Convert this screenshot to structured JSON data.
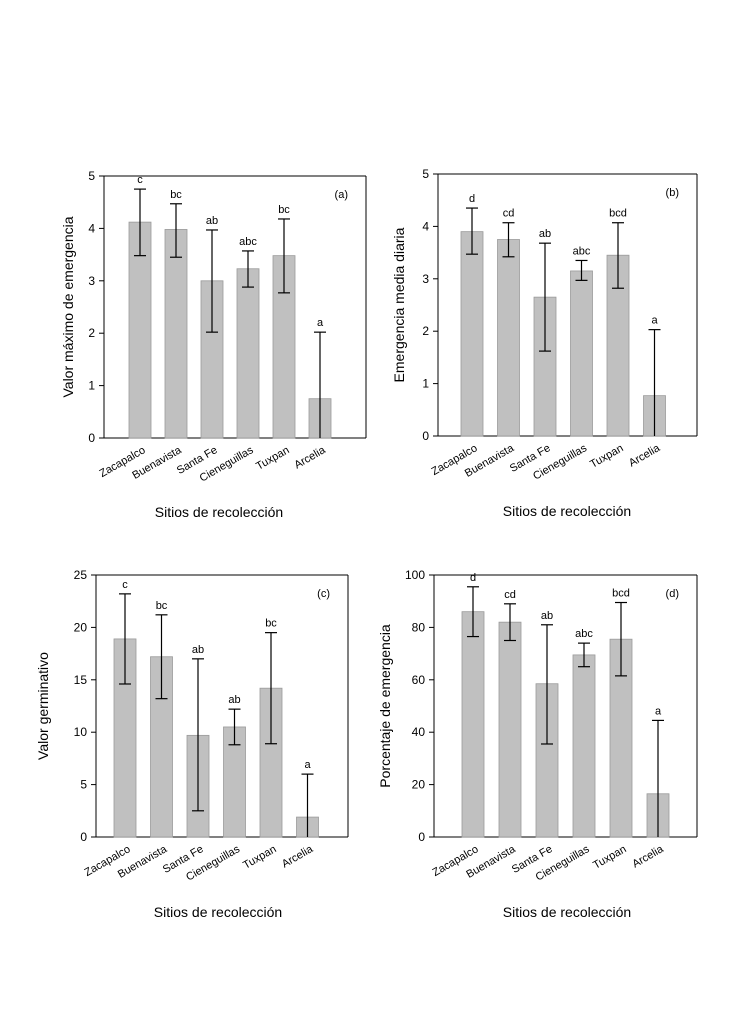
{
  "chart_data": [
    {
      "type": "bar",
      "panel_label": "(a)",
      "title": "",
      "xlabel": "Sitios de recolección",
      "ylabel": "Valor máximo de emergencia",
      "ylim": [
        0,
        5
      ],
      "yticks": [
        0,
        1,
        2,
        3,
        4,
        5
      ],
      "categories": [
        "Zacapalco",
        "Buenavista",
        "Santa Fe",
        "Cieneguillas",
        "Tuxpan",
        "Arcelia"
      ],
      "values": [
        4.12,
        3.98,
        3.0,
        3.23,
        3.48,
        0.75
      ],
      "err_low": [
        3.48,
        3.45,
        2.02,
        2.88,
        2.77,
        0.0
      ],
      "err_high": [
        4.75,
        4.47,
        3.97,
        3.57,
        4.18,
        2.02
      ],
      "letters": [
        "c",
        "bc",
        "ab",
        "abc",
        "bc",
        "a"
      ],
      "legend": "none"
    },
    {
      "type": "bar",
      "panel_label": "(b)",
      "title": "",
      "xlabel": "Sitios de recolección",
      "ylabel": "Emergencia media diaria",
      "ylim": [
        0,
        5
      ],
      "yticks": [
        0,
        1,
        2,
        3,
        4,
        5
      ],
      "categories": [
        "Zacapalco",
        "Buenavista",
        "Santa Fe",
        "Cieneguillas",
        "Tuxpan",
        "Arcelia"
      ],
      "values": [
        3.9,
        3.75,
        2.65,
        3.15,
        3.45,
        0.77
      ],
      "err_low": [
        3.47,
        3.42,
        1.62,
        2.97,
        2.82,
        0.0
      ],
      "err_high": [
        4.35,
        4.07,
        3.68,
        3.35,
        4.07,
        2.03
      ],
      "letters": [
        "d",
        "cd",
        "ab",
        "abc",
        "bcd",
        "a"
      ],
      "legend": "none"
    },
    {
      "type": "bar",
      "panel_label": "(c)",
      "title": "",
      "xlabel": "Sitios de recolección",
      "ylabel": "Valor germinativo",
      "ylim": [
        0,
        25
      ],
      "yticks": [
        0,
        5,
        10,
        15,
        20,
        25
      ],
      "categories": [
        "Zacapalco",
        "Buenavista",
        "Santa Fe",
        "Cieneguillas",
        "Tuxpan",
        "Arcelia"
      ],
      "values": [
        18.9,
        17.2,
        9.7,
        10.5,
        14.2,
        1.9
      ],
      "err_low": [
        14.6,
        13.2,
        2.5,
        8.8,
        8.9,
        0.0
      ],
      "err_high": [
        23.2,
        21.2,
        17.0,
        12.2,
        19.5,
        6.0
      ],
      "letters": [
        "c",
        "bc",
        "ab",
        "ab",
        "bc",
        "a"
      ],
      "legend": "none"
    },
    {
      "type": "bar",
      "panel_label": "(d)",
      "title": "",
      "xlabel": "Sitios de recolección",
      "ylabel": "Porcentaje de emergencia",
      "ylim": [
        0,
        100
      ],
      "yticks": [
        0,
        20,
        40,
        60,
        80,
        100
      ],
      "categories": [
        "Zacapalco",
        "Buenavista",
        "Santa Fe",
        "Cieneguillas",
        "Tuxpan",
        "Arcelia"
      ],
      "values": [
        86,
        82,
        58.5,
        69.5,
        75.5,
        16.5
      ],
      "err_low": [
        76.5,
        75,
        35.5,
        65,
        61.5,
        0
      ],
      "err_high": [
        95.5,
        89,
        81,
        74,
        89.5,
        44.5
      ],
      "letters": [
        "d",
        "cd",
        "ab",
        "abc",
        "bcd",
        "a"
      ],
      "legend": "none"
    }
  ],
  "colors": {
    "bar_fill": "#c0c0c0",
    "bar_stroke": "#9a9a9a",
    "axis": "#000000"
  }
}
